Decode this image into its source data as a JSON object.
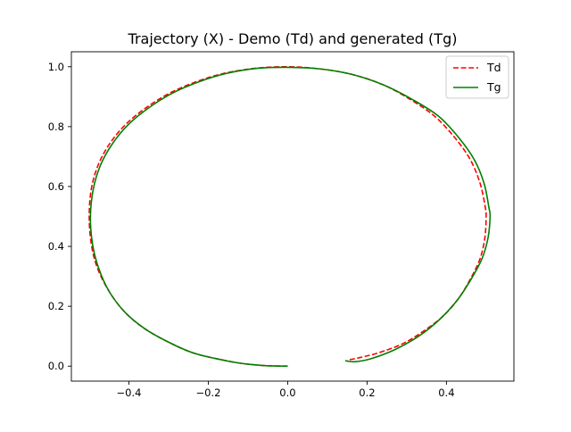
{
  "chart_data": {
    "type": "line",
    "title": "Trajectory (X) - Demo (Td) and generated (Tg)",
    "xlabel": "",
    "ylabel": "",
    "xlim": [
      -0.545,
      0.57
    ],
    "ylim": [
      -0.05,
      1.05
    ],
    "xticks": [
      -0.4,
      -0.2,
      0.0,
      0.2,
      0.4
    ],
    "xtick_labels": [
      "−0.4",
      "−0.2",
      "0.0",
      "0.2",
      "0.4"
    ],
    "yticks": [
      0.0,
      0.2,
      0.4,
      0.6,
      0.8,
      1.0
    ],
    "ytick_labels": [
      "0.0",
      "0.2",
      "0.4",
      "0.6",
      "0.8",
      "1.0"
    ],
    "grid": false,
    "legend_position": "top-right",
    "series": [
      {
        "name": "Td",
        "color": "#ff0000",
        "style": "dashed",
        "points": [
          [
            0.0,
            0.0
          ],
          [
            -0.06,
            0.002
          ],
          [
            -0.12,
            0.01
          ],
          [
            -0.18,
            0.025
          ],
          [
            -0.24,
            0.045
          ],
          [
            -0.3,
            0.08
          ],
          [
            -0.36,
            0.125
          ],
          [
            -0.41,
            0.18
          ],
          [
            -0.45,
            0.25
          ],
          [
            -0.48,
            0.33
          ],
          [
            -0.495,
            0.41
          ],
          [
            -0.5,
            0.5
          ],
          [
            -0.495,
            0.59
          ],
          [
            -0.478,
            0.67
          ],
          [
            -0.45,
            0.74
          ],
          [
            -0.41,
            0.805
          ],
          [
            -0.36,
            0.86
          ],
          [
            -0.3,
            0.91
          ],
          [
            -0.23,
            0.95
          ],
          [
            -0.16,
            0.978
          ],
          [
            -0.08,
            0.995
          ],
          [
            0.0,
            1.0
          ],
          [
            0.08,
            0.993
          ],
          [
            0.16,
            0.975
          ],
          [
            0.24,
            0.94
          ],
          [
            0.31,
            0.89
          ],
          [
            0.37,
            0.835
          ],
          [
            0.42,
            0.765
          ],
          [
            0.46,
            0.69
          ],
          [
            0.485,
            0.61
          ],
          [
            0.498,
            0.53
          ],
          [
            0.5,
            0.5
          ],
          [
            0.497,
            0.43
          ],
          [
            0.485,
            0.36
          ],
          [
            0.46,
            0.29
          ],
          [
            0.43,
            0.225
          ],
          [
            0.39,
            0.165
          ],
          [
            0.34,
            0.115
          ],
          [
            0.29,
            0.075
          ],
          [
            0.23,
            0.045
          ],
          [
            0.18,
            0.028
          ],
          [
            0.15,
            0.02
          ]
        ]
      },
      {
        "name": "Tg",
        "color": "#008000",
        "style": "solid",
        "points": [
          [
            0.0,
            0.0
          ],
          [
            -0.06,
            0.002
          ],
          [
            -0.12,
            0.01
          ],
          [
            -0.18,
            0.025
          ],
          [
            -0.24,
            0.045
          ],
          [
            -0.3,
            0.08
          ],
          [
            -0.36,
            0.125
          ],
          [
            -0.41,
            0.18
          ],
          [
            -0.45,
            0.25
          ],
          [
            -0.477,
            0.33
          ],
          [
            -0.492,
            0.41
          ],
          [
            -0.497,
            0.5
          ],
          [
            -0.49,
            0.59
          ],
          [
            -0.472,
            0.67
          ],
          [
            -0.443,
            0.74
          ],
          [
            -0.403,
            0.805
          ],
          [
            -0.353,
            0.86
          ],
          [
            -0.293,
            0.91
          ],
          [
            -0.223,
            0.95
          ],
          [
            -0.153,
            0.978
          ],
          [
            -0.075,
            0.995
          ],
          [
            0.0,
            0.998
          ],
          [
            0.08,
            0.993
          ],
          [
            0.16,
            0.975
          ],
          [
            0.24,
            0.94
          ],
          [
            0.315,
            0.89
          ],
          [
            0.38,
            0.835
          ],
          [
            0.43,
            0.765
          ],
          [
            0.47,
            0.69
          ],
          [
            0.495,
            0.61
          ],
          [
            0.507,
            0.53
          ],
          [
            0.51,
            0.5
          ],
          [
            0.505,
            0.43
          ],
          [
            0.49,
            0.36
          ],
          [
            0.462,
            0.29
          ],
          [
            0.427,
            0.22
          ],
          [
            0.382,
            0.155
          ],
          [
            0.33,
            0.1
          ],
          [
            0.27,
            0.055
          ],
          [
            0.21,
            0.025
          ],
          [
            0.17,
            0.015
          ],
          [
            0.145,
            0.018
          ]
        ]
      }
    ]
  }
}
